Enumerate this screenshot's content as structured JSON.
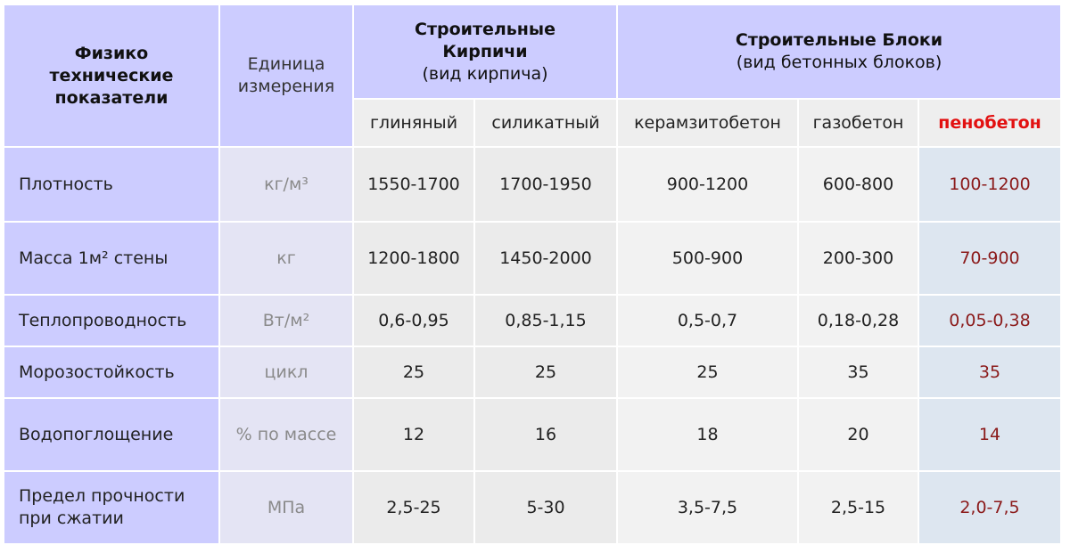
{
  "header": {
    "property": "Физико технические показатели",
    "unit": "Единица измерения",
    "groups": [
      {
        "title": "Строительные Кирпичи",
        "subtitle": "(вид кирпича)"
      },
      {
        "title": "Строительные Блоки",
        "subtitle": "(вид бетонных блоков)"
      }
    ],
    "columns": [
      "глиняный",
      "силикатный",
      "керамзитобетон",
      "газобетон",
      "пенобетон"
    ]
  },
  "table": {
    "rows": [
      {
        "label": "Плотность",
        "unit": "кг/м³",
        "values": [
          "1550-1700",
          "1700-1950",
          "900-1200",
          "600-800",
          "100-1200"
        ]
      },
      {
        "label": "Масса 1м² стены",
        "unit": "кг",
        "values": [
          "1200-1800",
          "1450-2000",
          "500-900",
          "200-300",
          "70-900"
        ]
      },
      {
        "label": "Теплопроводность",
        "unit": "Вт/м²",
        "values": [
          "0,6-0,95",
          "0,85-1,15",
          "0,5-0,7",
          "0,18-0,28",
          "0,05-0,38"
        ]
      },
      {
        "label": "Морозостойкость",
        "unit": "цикл",
        "values": [
          "25",
          "25",
          "25",
          "35",
          "35"
        ]
      },
      {
        "label": "Водопоглощение",
        "unit": "% по массе",
        "values": [
          "12",
          "16",
          "18",
          "20",
          "14"
        ]
      },
      {
        "label": "Предел прочности при сжатии",
        "unit": "МПа",
        "values": [
          "2,5-25",
          "5-30",
          "3,5-7,5",
          "2,5-15",
          "2,0-7,5"
        ]
      }
    ]
  }
}
